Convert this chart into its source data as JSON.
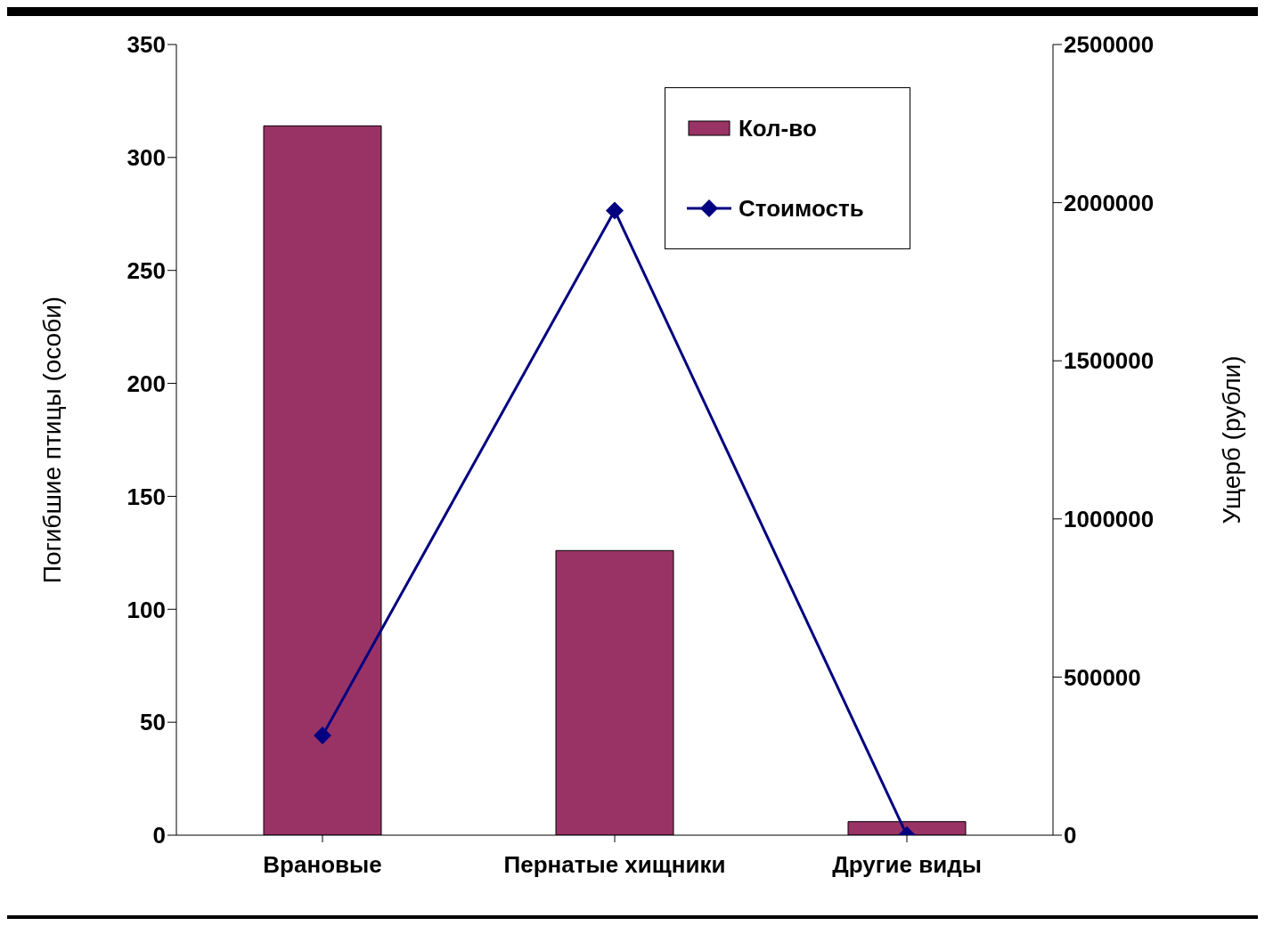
{
  "chart_data": {
    "type": "bar",
    "categories": [
      "Врановые",
      "Пернатые хищники",
      "Другие виды"
    ],
    "series": [
      {
        "name": "Кол-во",
        "color": "#993366",
        "values": [
          314,
          126,
          6
        ]
      },
      {
        "name": "Стоимость",
        "type": "line",
        "axis": "y2",
        "color": "#000080",
        "marker": "diamond",
        "values": [
          315000,
          1975000,
          0
        ]
      }
    ],
    "ylabel": "Погибшие птицы (особи)",
    "y2label": "Ущерб (рубли)",
    "ylim": [
      0,
      350
    ],
    "yticks": [
      0,
      50,
      100,
      150,
      200,
      250,
      300,
      350
    ],
    "y2lim": [
      0,
      2500000
    ],
    "y2ticks": [
      0,
      500000,
      1000000,
      1500000,
      2000000,
      2500000
    ],
    "legend": "top right"
  }
}
